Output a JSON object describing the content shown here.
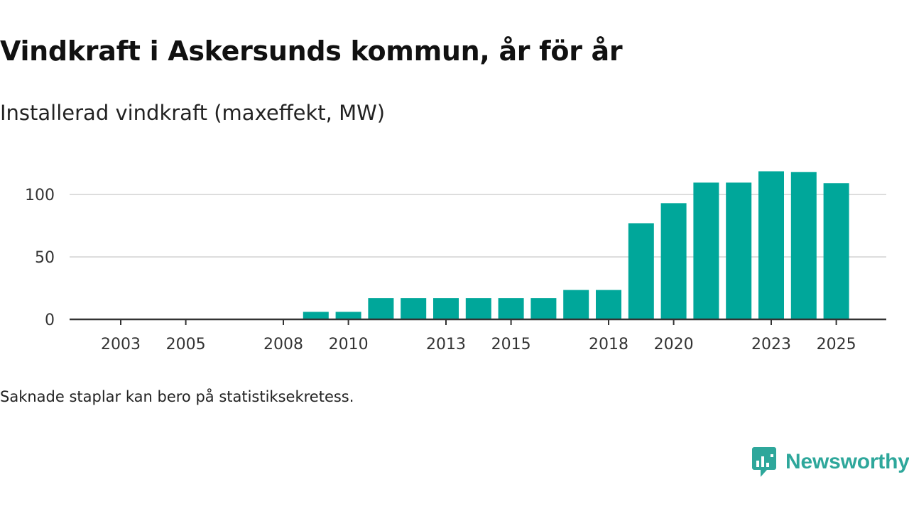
{
  "title": "Vindkraft i Askersunds kommun, år för år",
  "subtitle": "Installerad vindkraft (maxeffekt, MW)",
  "note": "Saknade staplar kan bero på statistiksekretess.",
  "brand": {
    "name": "Newsworthy",
    "color": "#2ea79b",
    "icon": "newsworthy-logo-icon"
  },
  "colors": {
    "bar": "#00a79a",
    "gridline": "#dddddd",
    "axis": "#333333",
    "tick_text": "#333333"
  },
  "chart_data": {
    "type": "bar",
    "title": "Vindkraft i Askersunds kommun, år för år",
    "subtitle": "Installerad vindkraft (maxeffekt, MW)",
    "xlabel": "",
    "ylabel": "",
    "ylim": [
      0,
      125
    ],
    "grid": true,
    "categories": [
      "2003",
      "2004",
      "2005",
      "2006",
      "2007",
      "2008",
      "2009",
      "2010",
      "2011",
      "2012",
      "2013",
      "2014",
      "2015",
      "2016",
      "2017",
      "2018",
      "2019",
      "2020",
      "2021",
      "2022",
      "2023",
      "2024",
      "2025"
    ],
    "values": [
      0,
      0,
      0,
      0,
      0,
      0,
      6,
      6,
      17,
      17,
      17,
      17,
      17,
      17,
      23.5,
      23.5,
      77,
      93,
      109.5,
      109.5,
      118.5,
      118,
      109
    ],
    "x_tick_labels": [
      "2003",
      "2005",
      "2008",
      "2010",
      "2013",
      "2015",
      "2018",
      "2020",
      "2023",
      "2025"
    ],
    "y_tick_labels": [
      "0",
      "50",
      "100"
    ],
    "y_ticks": [
      0,
      50,
      100
    ]
  }
}
